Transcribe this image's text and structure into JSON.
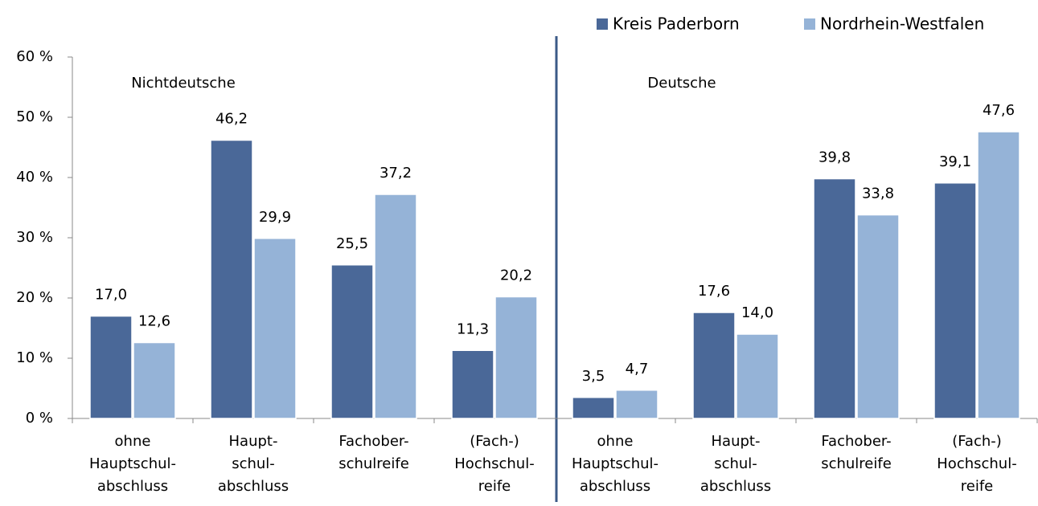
{
  "chart_data": {
    "type": "bar",
    "categories": [
      "ohne\nHauptschul-\nabschluss",
      "Haupt-\nschul-\nabschluss",
      "Fachober-\nschulreife",
      "(Fach-)\nHochschul-\nreife",
      "ohne\nHauptschul-\nabschluss",
      "Haupt-\nschul-\nabschluss",
      "Fachober-\nschulreife",
      "(Fach-)\nHochschul-\nreife"
    ],
    "series": [
      {
        "name": "Kreis Paderborn",
        "color": "#4a6898",
        "values": [
          17.0,
          46.2,
          25.5,
          11.3,
          3.5,
          17.6,
          39.8,
          39.1
        ],
        "value_labels": [
          "17,0",
          "46,2",
          "25,5",
          "11,3",
          "3,5",
          "17,6",
          "39,8",
          "39,1"
        ]
      },
      {
        "name": "Nordrhein-Westfalen",
        "color": "#95b3d7",
        "values": [
          12.6,
          29.9,
          37.2,
          20.2,
          4.7,
          14.0,
          33.8,
          47.6
        ],
        "value_labels": [
          "12,6",
          "29,9",
          "37,2",
          "20,2",
          "4,7",
          "14,0",
          "33,8",
          "47,6"
        ]
      }
    ],
    "annotations": [
      "Nichtdeutsche",
      "Deutsche"
    ],
    "ylim": [
      0,
      60
    ],
    "yticks": [
      {
        "value": 0,
        "label": "0 %"
      },
      {
        "value": 10,
        "label": "10 %"
      },
      {
        "value": 20,
        "label": "20 %"
      },
      {
        "value": 30,
        "label": "30 %"
      },
      {
        "value": 40,
        "label": "40 %"
      },
      {
        "value": 50,
        "label": "50 %"
      },
      {
        "value": 60,
        "label": "60 %"
      }
    ],
    "legend": "top-right"
  }
}
